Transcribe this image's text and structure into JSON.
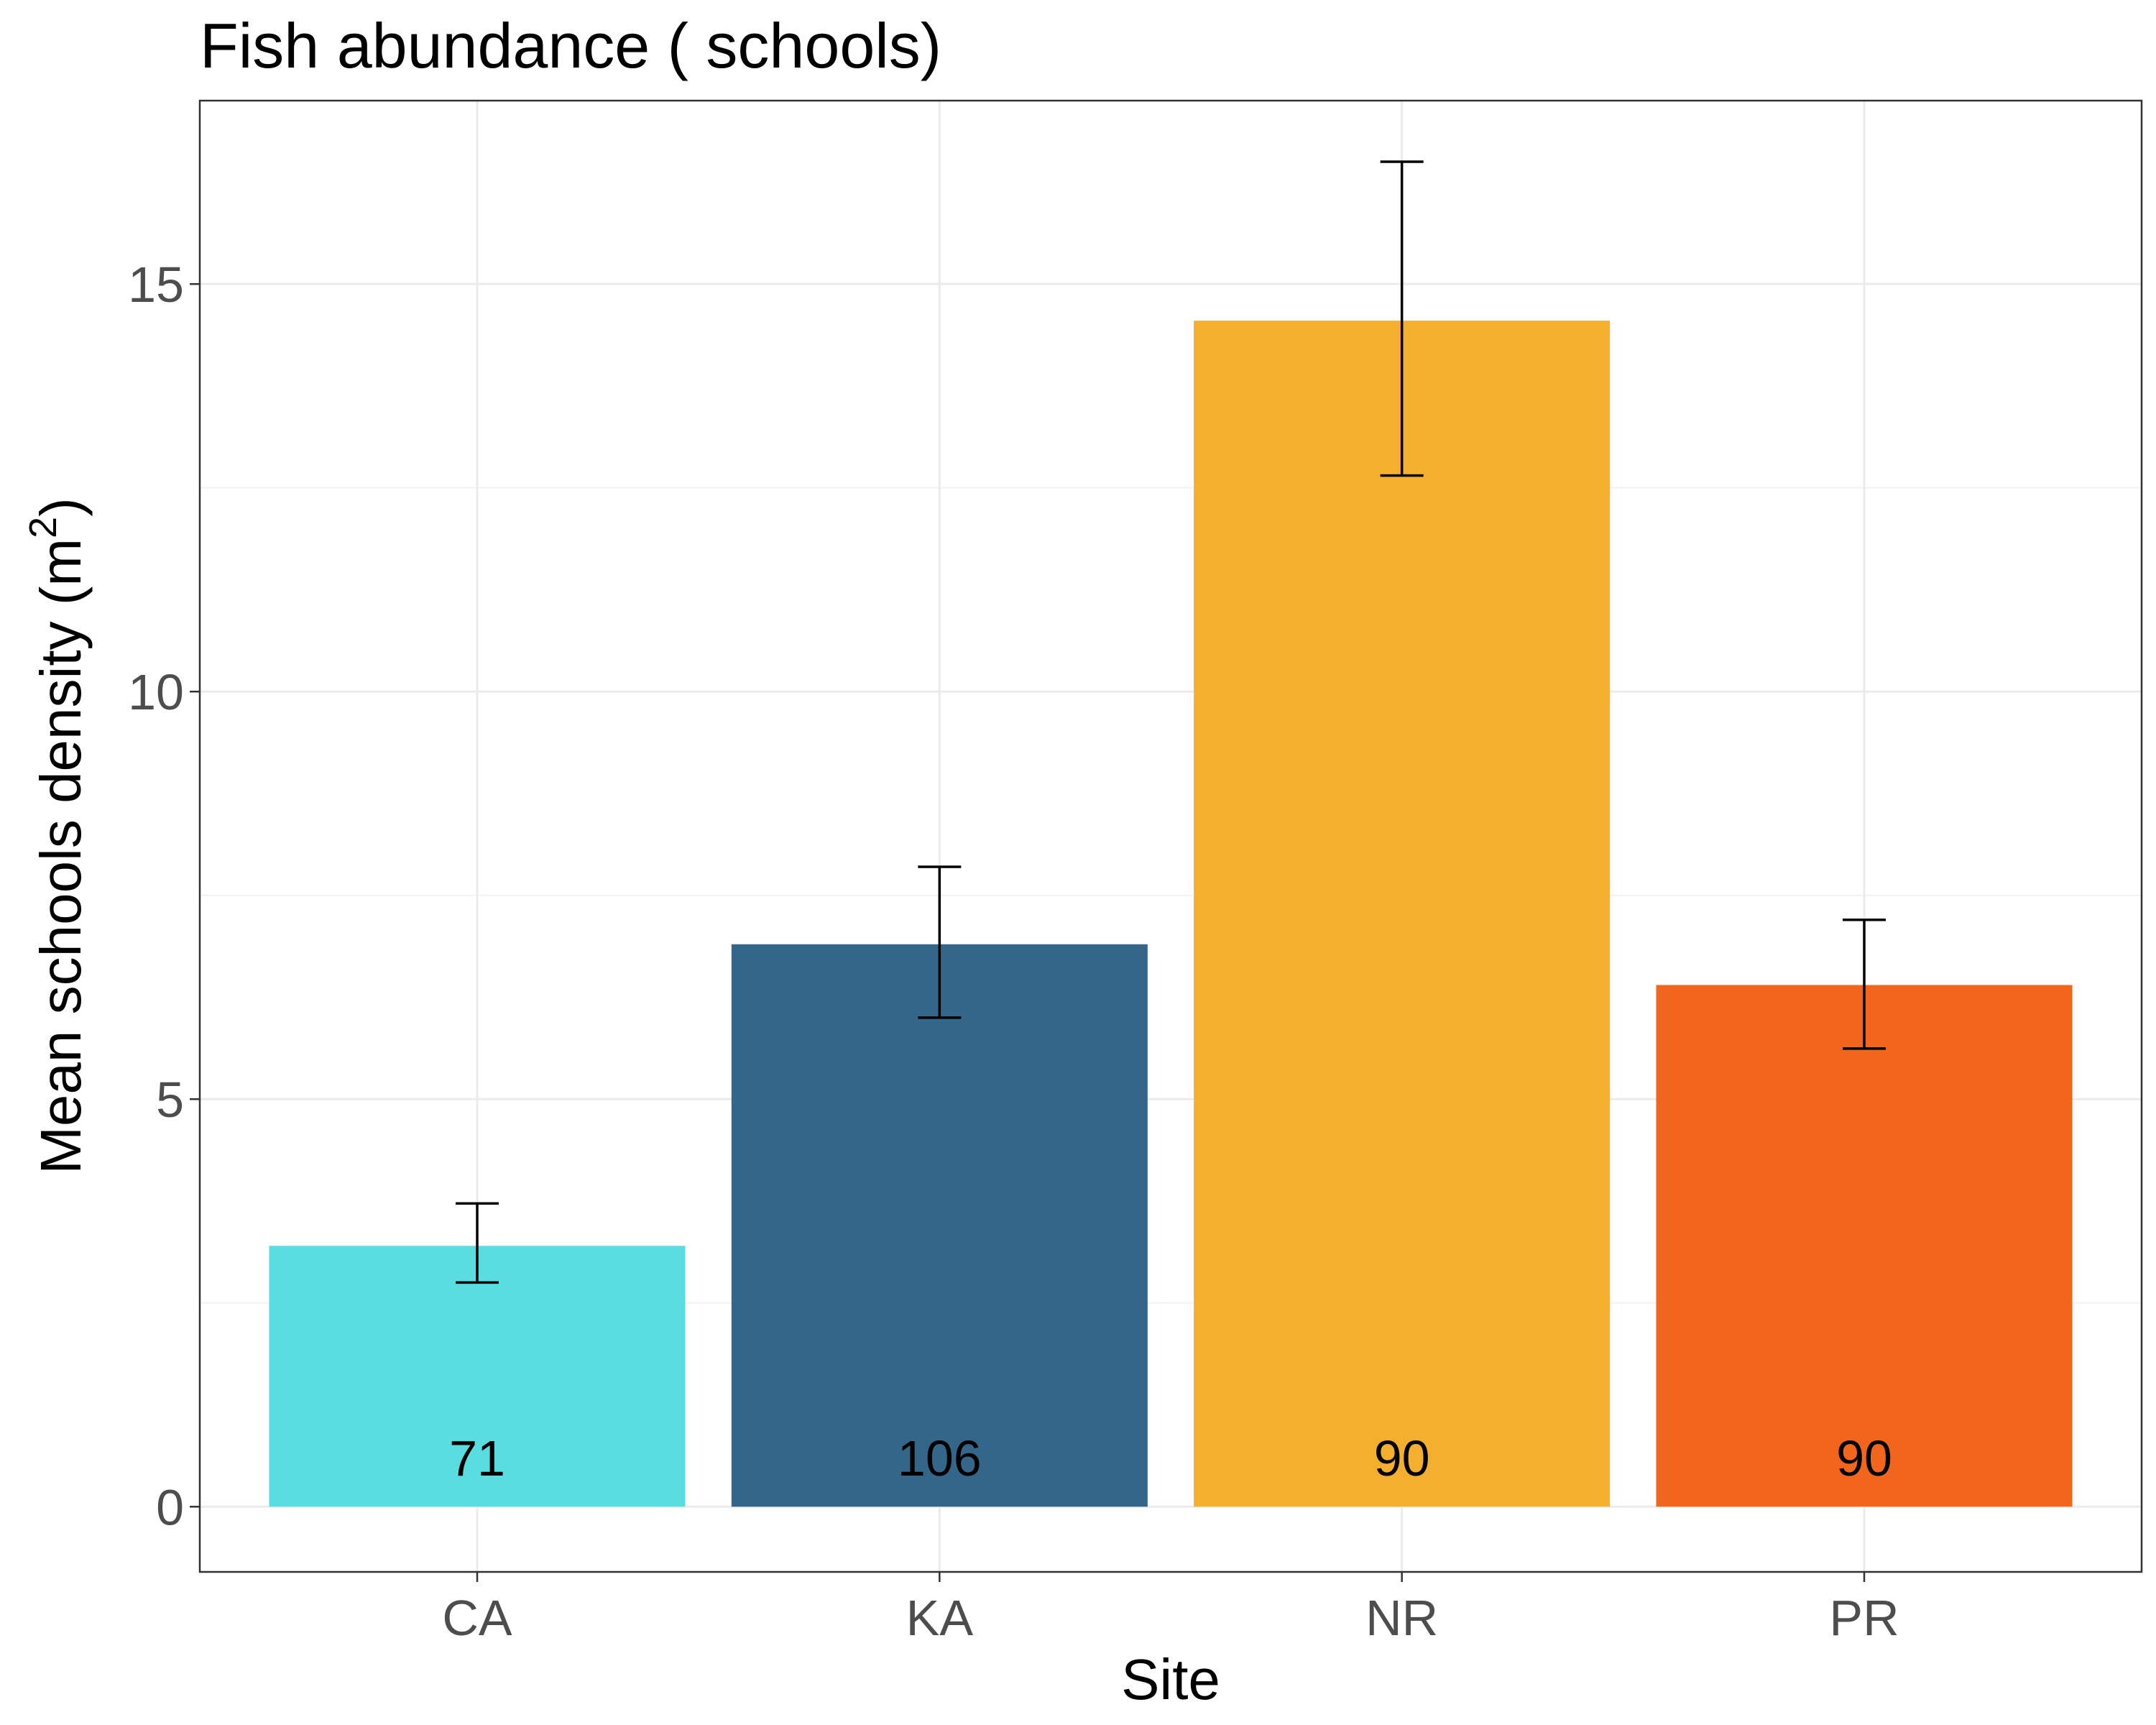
{
  "chart_data": {
    "type": "bar",
    "title": "Fish abundance ( schools)",
    "xlabel": "Site",
    "ylabel": "Mean schools density (m",
    "ylabel_superscript": "2",
    "ylabel_suffix": ")",
    "categories": [
      "CA",
      "KA",
      "NR",
      "PR"
    ],
    "values": [
      3.2,
      6.9,
      14.55,
      6.4
    ],
    "error_low": [
      2.75,
      6.0,
      12.65,
      5.62
    ],
    "error_high": [
      3.72,
      7.85,
      16.5,
      7.2
    ],
    "counts": [
      "71",
      "106",
      "90",
      "90"
    ],
    "colors": [
      "#59dde0",
      "#346689",
      "#f4af2f",
      "#f1651d"
    ],
    "yticks": [
      0,
      5,
      10,
      15
    ],
    "ytick_labels": [
      "0",
      "5",
      "10",
      "15"
    ],
    "ylim": [
      -0.8,
      17.25
    ],
    "grid": true,
    "legend": "none"
  }
}
